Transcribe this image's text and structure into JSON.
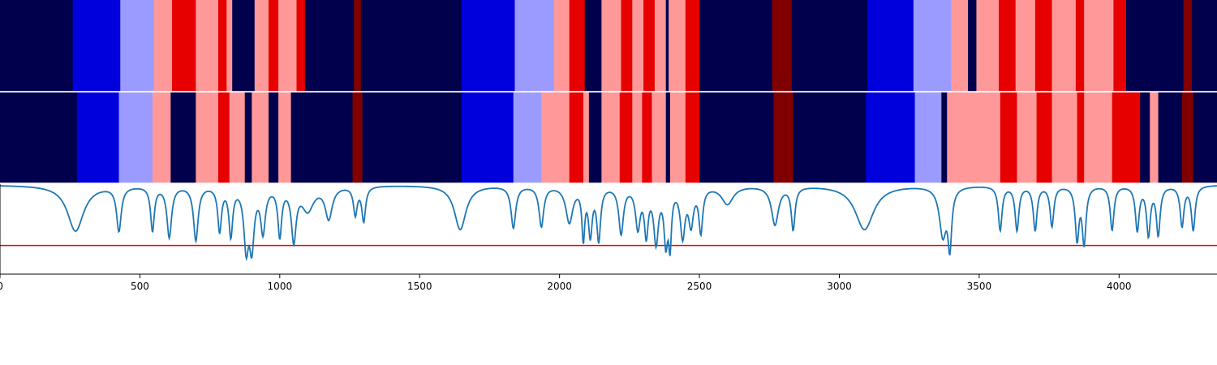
{
  "chart_data": [
    {
      "type": "heatmap",
      "title": "",
      "xlim": [
        0,
        4350
      ],
      "colors": {
        "0": "#00004c",
        "1": "#0000dd",
        "2": "#9b9bff",
        "3": "#ff9999",
        "4": "#e60000",
        "5": "#800000"
      },
      "segments": [
        [
          0,
          260,
          0
        ],
        [
          260,
          430,
          1
        ],
        [
          430,
          550,
          2
        ],
        [
          550,
          615,
          3
        ],
        [
          615,
          700,
          4
        ],
        [
          700,
          780,
          3
        ],
        [
          780,
          810,
          4
        ],
        [
          810,
          830,
          3
        ],
        [
          830,
          910,
          0
        ],
        [
          910,
          960,
          3
        ],
        [
          960,
          995,
          4
        ],
        [
          995,
          1060,
          3
        ],
        [
          1060,
          1090,
          4
        ],
        [
          1090,
          1265,
          0
        ],
        [
          1265,
          1290,
          5
        ],
        [
          1290,
          1650,
          0
        ],
        [
          1650,
          1840,
          1
        ],
        [
          1840,
          1980,
          2
        ],
        [
          1980,
          2035,
          3
        ],
        [
          2035,
          2090,
          4
        ],
        [
          2090,
          2150,
          0
        ],
        [
          2150,
          2220,
          3
        ],
        [
          2220,
          2260,
          4
        ],
        [
          2260,
          2300,
          3
        ],
        [
          2300,
          2340,
          4
        ],
        [
          2340,
          2380,
          3
        ],
        [
          2380,
          2390,
          0
        ],
        [
          2390,
          2450,
          3
        ],
        [
          2450,
          2500,
          4
        ],
        [
          2500,
          2760,
          0
        ],
        [
          2760,
          2830,
          5
        ],
        [
          2830,
          3100,
          0
        ],
        [
          3100,
          3265,
          1
        ],
        [
          3265,
          3400,
          2
        ],
        [
          3400,
          3460,
          3
        ],
        [
          3460,
          3490,
          0
        ],
        [
          3490,
          3570,
          3
        ],
        [
          3570,
          3630,
          4
        ],
        [
          3630,
          3700,
          3
        ],
        [
          3700,
          3760,
          4
        ],
        [
          3760,
          3845,
          3
        ],
        [
          3845,
          3875,
          4
        ],
        [
          3875,
          3980,
          3
        ],
        [
          3980,
          4025,
          4
        ],
        [
          4025,
          4230,
          0
        ],
        [
          4230,
          4260,
          5
        ],
        [
          4260,
          4350,
          0
        ]
      ]
    },
    {
      "type": "heatmap",
      "title": "",
      "xlim": [
        0,
        4350
      ],
      "segments": [
        [
          0,
          275,
          0
        ],
        [
          275,
          425,
          1
        ],
        [
          425,
          545,
          2
        ],
        [
          545,
          610,
          3
        ],
        [
          610,
          700,
          0
        ],
        [
          700,
          780,
          3
        ],
        [
          780,
          820,
          4
        ],
        [
          820,
          875,
          3
        ],
        [
          875,
          900,
          0
        ],
        [
          900,
          960,
          3
        ],
        [
          960,
          995,
          0
        ],
        [
          995,
          1040,
          3
        ],
        [
          1040,
          1260,
          0
        ],
        [
          1260,
          1295,
          5
        ],
        [
          1295,
          1650,
          0
        ],
        [
          1650,
          1835,
          1
        ],
        [
          1835,
          1935,
          2
        ],
        [
          1935,
          2035,
          3
        ],
        [
          2035,
          2085,
          4
        ],
        [
          2085,
          2105,
          3
        ],
        [
          2105,
          2150,
          0
        ],
        [
          2150,
          2215,
          3
        ],
        [
          2215,
          2260,
          4
        ],
        [
          2260,
          2295,
          3
        ],
        [
          2295,
          2330,
          4
        ],
        [
          2330,
          2380,
          3
        ],
        [
          2380,
          2395,
          0
        ],
        [
          2395,
          2450,
          3
        ],
        [
          2450,
          2500,
          4
        ],
        [
          2500,
          2765,
          0
        ],
        [
          2765,
          2835,
          5
        ],
        [
          2835,
          3095,
          0
        ],
        [
          3095,
          3270,
          1
        ],
        [
          3270,
          3365,
          2
        ],
        [
          3365,
          3385,
          0
        ],
        [
          3385,
          3575,
          3
        ],
        [
          3575,
          3635,
          4
        ],
        [
          3635,
          3705,
          3
        ],
        [
          3705,
          3760,
          4
        ],
        [
          3760,
          3850,
          3
        ],
        [
          3850,
          3875,
          4
        ],
        [
          3875,
          3975,
          3
        ],
        [
          3975,
          4075,
          4
        ],
        [
          4075,
          4110,
          0
        ],
        [
          4110,
          4140,
          3
        ],
        [
          4140,
          4225,
          0
        ],
        [
          4225,
          4265,
          5
        ],
        [
          4265,
          4350,
          0
        ]
      ]
    },
    {
      "type": "line",
      "title": "",
      "xlabel": "",
      "ylabel": "",
      "xlim": [
        0,
        4350
      ],
      "ylim": [
        -0.1,
        1.0
      ],
      "xticks": [
        "0",
        "500",
        "1000",
        "1500",
        "2000",
        "2500",
        "3000",
        "3500",
        "4000"
      ],
      "series_color": "#1f77b4",
      "threshold": 0.25,
      "threshold_color": "#e60000",
      "baseline": 0.99,
      "dips": [
        [
          270,
          0.43,
          35
        ],
        [
          425,
          0.45,
          10
        ],
        [
          545,
          0.45,
          8
        ],
        [
          605,
          0.37,
          10
        ],
        [
          700,
          0.33,
          10
        ],
        [
          785,
          0.45,
          8
        ],
        [
          825,
          0.4,
          8
        ],
        [
          880,
          0.28,
          10
        ],
        [
          900,
          0.3,
          10
        ],
        [
          940,
          0.45,
          10
        ],
        [
          1000,
          0.4,
          8
        ],
        [
          1050,
          0.35,
          10
        ],
        [
          1100,
          0.7,
          25
        ],
        [
          1175,
          0.6,
          15
        ],
        [
          1270,
          0.65,
          8
        ],
        [
          1300,
          0.57,
          8
        ],
        [
          1645,
          0.45,
          25
        ],
        [
          1835,
          0.48,
          10
        ],
        [
          1935,
          0.5,
          10
        ],
        [
          2035,
          0.55,
          15
        ],
        [
          2085,
          0.38,
          6
        ],
        [
          2110,
          0.42,
          8
        ],
        [
          2140,
          0.35,
          8
        ],
        [
          2220,
          0.42,
          10
        ],
        [
          2280,
          0.5,
          10
        ],
        [
          2310,
          0.43,
          8
        ],
        [
          2345,
          0.33,
          10
        ],
        [
          2380,
          0.35,
          8
        ],
        [
          2395,
          0.35,
          6
        ],
        [
          2440,
          0.4,
          10
        ],
        [
          2470,
          0.55,
          10
        ],
        [
          2505,
          0.45,
          8
        ],
        [
          2600,
          0.77,
          25
        ],
        [
          2770,
          0.52,
          15
        ],
        [
          2835,
          0.47,
          8
        ],
        [
          3090,
          0.45,
          40
        ],
        [
          3370,
          0.4,
          15
        ],
        [
          3395,
          0.3,
          8
        ],
        [
          3575,
          0.45,
          8
        ],
        [
          3635,
          0.45,
          8
        ],
        [
          3700,
          0.45,
          8
        ],
        [
          3760,
          0.5,
          8
        ],
        [
          3850,
          0.35,
          8
        ],
        [
          3875,
          0.3,
          8
        ],
        [
          3975,
          0.45,
          8
        ],
        [
          4065,
          0.45,
          8
        ],
        [
          4105,
          0.4,
          8
        ],
        [
          4140,
          0.4,
          8
        ],
        [
          4225,
          0.5,
          8
        ],
        [
          4265,
          0.45,
          8
        ]
      ]
    }
  ]
}
